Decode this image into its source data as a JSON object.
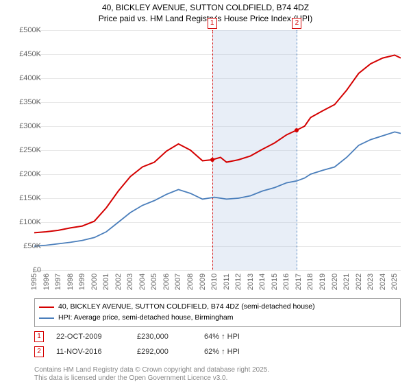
{
  "title_line1": "40, BICKLEY AVENUE, SUTTON COLDFIELD, B74 4DZ",
  "title_line2": "Price paid vs. HM Land Registry's House Price Index (HPI)",
  "chart": {
    "type": "line",
    "x_start_year": 1995,
    "x_end_year": 2025.5,
    "ylim": [
      0,
      500000
    ],
    "ytick_step": 50000,
    "y_labels": [
      "£0",
      "£50K",
      "£100K",
      "£150K",
      "£200K",
      "£250K",
      "£300K",
      "£350K",
      "£400K",
      "£450K",
      "£500K"
    ],
    "x_tick_years": [
      1995,
      1996,
      1997,
      1998,
      1999,
      2000,
      2001,
      2002,
      2003,
      2004,
      2005,
      2006,
      2007,
      2008,
      2009,
      2010,
      2011,
      2012,
      2013,
      2014,
      2015,
      2016,
      2017,
      2018,
      2019,
      2020,
      2021,
      2022,
      2023,
      2024,
      2025
    ],
    "grid_color": "#e9e9e9",
    "background_color": "#ffffff",
    "series": [
      {
        "name": "price_paid",
        "color": "#d40000",
        "width": 2,
        "points": [
          [
            1995,
            78000
          ],
          [
            1996,
            80000
          ],
          [
            1997,
            83000
          ],
          [
            1998,
            88000
          ],
          [
            1999,
            92000
          ],
          [
            2000,
            102000
          ],
          [
            2001,
            130000
          ],
          [
            2002,
            165000
          ],
          [
            2003,
            195000
          ],
          [
            2004,
            215000
          ],
          [
            2005,
            225000
          ],
          [
            2006,
            248000
          ],
          [
            2007,
            263000
          ],
          [
            2008,
            250000
          ],
          [
            2009,
            228000
          ],
          [
            2009.8,
            230000
          ],
          [
            2010.5,
            235000
          ],
          [
            2011,
            225000
          ],
          [
            2012,
            230000
          ],
          [
            2013,
            238000
          ],
          [
            2014,
            252000
          ],
          [
            2015,
            265000
          ],
          [
            2016,
            282000
          ],
          [
            2016.86,
            292000
          ],
          [
            2017.5,
            300000
          ],
          [
            2018,
            318000
          ],
          [
            2019,
            332000
          ],
          [
            2020,
            345000
          ],
          [
            2021,
            375000
          ],
          [
            2022,
            410000
          ],
          [
            2023,
            430000
          ],
          [
            2024,
            442000
          ],
          [
            2025,
            448000
          ],
          [
            2025.5,
            442000
          ]
        ]
      },
      {
        "name": "hpi",
        "color": "#4a7ebb",
        "width": 1.8,
        "points": [
          [
            1995,
            50000
          ],
          [
            1996,
            52000
          ],
          [
            1997,
            55000
          ],
          [
            1998,
            58000
          ],
          [
            1999,
            62000
          ],
          [
            2000,
            68000
          ],
          [
            2001,
            80000
          ],
          [
            2002,
            100000
          ],
          [
            2003,
            120000
          ],
          [
            2004,
            135000
          ],
          [
            2005,
            145000
          ],
          [
            2006,
            158000
          ],
          [
            2007,
            168000
          ],
          [
            2008,
            160000
          ],
          [
            2009,
            148000
          ],
          [
            2010,
            152000
          ],
          [
            2011,
            148000
          ],
          [
            2012,
            150000
          ],
          [
            2013,
            155000
          ],
          [
            2014,
            165000
          ],
          [
            2015,
            172000
          ],
          [
            2016,
            182000
          ],
          [
            2016.86,
            186000
          ],
          [
            2017.5,
            192000
          ],
          [
            2018,
            200000
          ],
          [
            2019,
            208000
          ],
          [
            2020,
            215000
          ],
          [
            2021,
            235000
          ],
          [
            2022,
            260000
          ],
          [
            2023,
            272000
          ],
          [
            2024,
            280000
          ],
          [
            2025,
            288000
          ],
          [
            2025.5,
            285000
          ]
        ]
      }
    ],
    "band": {
      "start_year": 2009.8,
      "end_year": 2016.86,
      "fill": "rgba(180,200,230,0.3)",
      "edge_left_color": "#d40000",
      "edge_right_color": "#4a7ebb"
    },
    "markers": [
      {
        "n": "1",
        "year": 2009.8,
        "value": 230000,
        "color": "#d40000"
      },
      {
        "n": "2",
        "year": 2016.86,
        "value": 292000,
        "color": "#d40000"
      }
    ]
  },
  "legend": {
    "items": [
      {
        "label": "40, BICKLEY AVENUE, SUTTON COLDFIELD, B74 4DZ (semi-detached house)",
        "color": "#d40000",
        "width": 2
      },
      {
        "label": "HPI: Average price, semi-detached house, Birmingham",
        "color": "#4a7ebb",
        "width": 2
      }
    ]
  },
  "sales": [
    {
      "n": "1",
      "date": "22-OCT-2009",
      "price": "£230,000",
      "diff": "64% ↑ HPI"
    },
    {
      "n": "2",
      "date": "11-NOV-2016",
      "price": "£292,000",
      "diff": "62% ↑ HPI"
    }
  ],
  "footer_line1": "Contains HM Land Registry data © Crown copyright and database right 2025.",
  "footer_line2": "This data is licensed under the Open Government Licence v3.0."
}
